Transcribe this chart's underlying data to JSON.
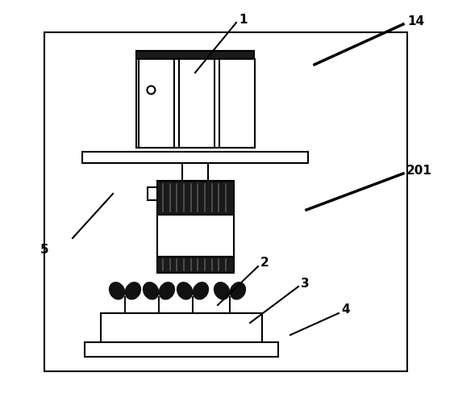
{
  "bg_color": "#ffffff",
  "line_color": "#000000",
  "fig_width": 5.63,
  "fig_height": 5.03,
  "dpi": 100
}
